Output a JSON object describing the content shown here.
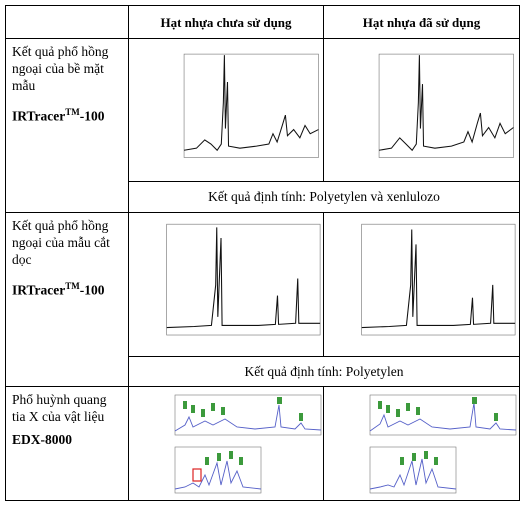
{
  "table": {
    "header": [
      "Hạt nhựa chưa sử dụng",
      "Hạt nhựa đã sử dụng"
    ],
    "rows": [
      {
        "label": "Kết quả phổ hồng ngoại của bề mặt mẫu",
        "instrument": {
          "name": "IRTracer",
          "sup": "TM",
          "suffix": "-100"
        },
        "result": "Kết quả định tính: Polyetylen và xenlulozo"
      },
      {
        "label": "Kết quả phổ hồng ngoại của mẫu cắt dọc",
        "instrument": {
          "name": "IRTracer",
          "sup": "TM",
          "suffix": "-100"
        },
        "result": "Kết quả định tính: Polyetylen"
      },
      {
        "label": "Phổ huỳnh quang tia X của vật liệu",
        "instrument": {
          "name": "EDX-8000"
        }
      }
    ]
  }
}
